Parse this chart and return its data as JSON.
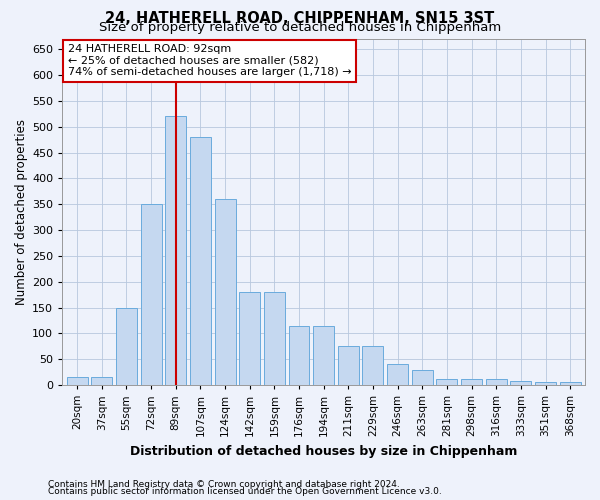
{
  "title": "24, HATHERELL ROAD, CHIPPENHAM, SN15 3ST",
  "subtitle": "Size of property relative to detached houses in Chippenham",
  "xlabel": "Distribution of detached houses by size in Chippenham",
  "ylabel": "Number of detached properties",
  "categories": [
    "20sqm",
    "37sqm",
    "55sqm",
    "72sqm",
    "89sqm",
    "107sqm",
    "124sqm",
    "142sqm",
    "159sqm",
    "176sqm",
    "194sqm",
    "211sqm",
    "229sqm",
    "246sqm",
    "263sqm",
    "281sqm",
    "298sqm",
    "316sqm",
    "333sqm",
    "351sqm",
    "368sqm"
  ],
  "values": [
    15,
    15,
    150,
    350,
    520,
    480,
    360,
    180,
    180,
    115,
    115,
    75,
    75,
    40,
    30,
    12,
    12,
    12,
    8,
    5,
    5
  ],
  "bar_color": "#c5d8f0",
  "bar_edge_color": "#6aabdd",
  "highlight_bar_color": "#c5d8f0",
  "vline_color": "#cc0000",
  "vline_index": 4,
  "ylim": [
    0,
    670
  ],
  "yticks": [
    0,
    50,
    100,
    150,
    200,
    250,
    300,
    350,
    400,
    450,
    500,
    550,
    600,
    650
  ],
  "annotation_line1": "24 HATHERELL ROAD: 92sqm",
  "annotation_line2": "← 25% of detached houses are smaller (582)",
  "annotation_line3": "74% of semi-detached houses are larger (1,718) →",
  "footer1": "Contains HM Land Registry data © Crown copyright and database right 2024.",
  "footer2": "Contains public sector information licensed under the Open Government Licence v3.0.",
  "background_color": "#eef2fb",
  "plot_bg_color": "#eef2fb",
  "title_fontsize": 10.5,
  "subtitle_fontsize": 9.5,
  "xlabel_fontsize": 9,
  "ylabel_fontsize": 8.5,
  "tick_fontsize": 7.5,
  "footer_fontsize": 6.5
}
